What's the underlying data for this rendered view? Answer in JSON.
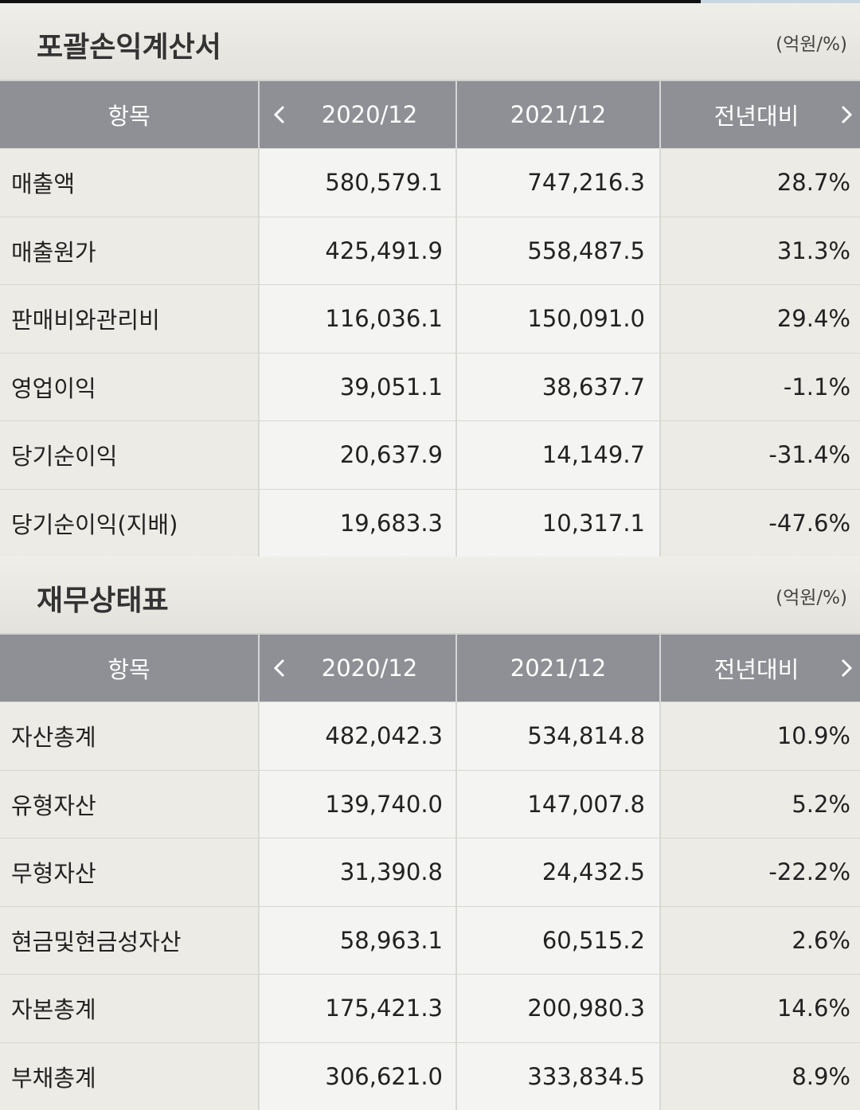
{
  "income": {
    "title": "포괄손익계산서",
    "unit": "(억원/%)",
    "headers": [
      "항목",
      "2020/12",
      "2021/12",
      "전년대비"
    ],
    "rows": [
      {
        "label": "매출액",
        "v2020": "580,579.1",
        "v2021": "747,216.3",
        "yoy": "28.7%",
        "neg": false
      },
      {
        "label": "매출원가",
        "v2020": "425,491.9",
        "v2021": "558,487.5",
        "yoy": "31.3%",
        "neg": false
      },
      {
        "label": "판매비와관리비",
        "v2020": "116,036.1",
        "v2021": "150,091.0",
        "yoy": "29.4%",
        "neg": false
      },
      {
        "label": "영업이익",
        "v2020": "39,051.1",
        "v2021": "38,637.7",
        "yoy": "-1.1%",
        "neg": true
      },
      {
        "label": "당기순이익",
        "v2020": "20,637.9",
        "v2021": "14,149.7",
        "yoy": "-31.4%",
        "neg": true
      },
      {
        "label": "당기순이익(지배)",
        "v2020": "19,683.3",
        "v2021": "10,317.1",
        "yoy": "-47.6%",
        "neg": true
      }
    ]
  },
  "balance": {
    "title": "재무상태표",
    "unit": "(억원/%)",
    "headers": [
      "항목",
      "2020/12",
      "2021/12",
      "전년대비"
    ],
    "rows": [
      {
        "label": "자산총계",
        "v2020": "482,042.3",
        "v2021": "534,814.8",
        "yoy": "10.9%",
        "neg": false
      },
      {
        "label": "유형자산",
        "v2020": "139,740.0",
        "v2021": "147,007.8",
        "yoy": "5.2%",
        "neg": false
      },
      {
        "label": "무형자산",
        "v2020": "31,390.8",
        "v2021": "24,432.5",
        "yoy": "-22.2%",
        "neg": true
      },
      {
        "label": "현금및현금성자산",
        "v2020": "58,963.1",
        "v2021": "60,515.2",
        "yoy": "2.6%",
        "neg": false
      },
      {
        "label": "자본총계",
        "v2020": "175,421.3",
        "v2021": "200,980.3",
        "yoy": "14.6%",
        "neg": false
      },
      {
        "label": "부채총계",
        "v2020": "306,621.0",
        "v2021": "333,834.5",
        "yoy": "8.9%",
        "neg": false
      }
    ]
  },
  "icons": {
    "prev": "chevron-left-icon",
    "next": "chevron-right-icon"
  },
  "colors": {
    "negative": "#d64545",
    "header_bg": "#8e9095"
  }
}
